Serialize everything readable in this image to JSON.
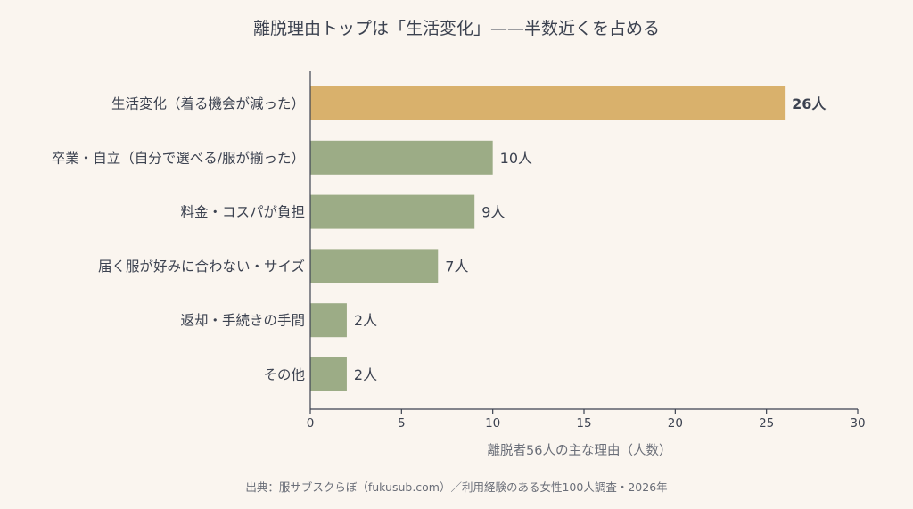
{
  "chart_data": {
    "type": "bar",
    "orientation": "horizontal",
    "title": "離脱理由トップは「生活変化」——半数近くを占める",
    "categories": [
      "生活変化（着る機会が減った）",
      "卒業・自立（自分で選べる/服が揃った）",
      "料金・コスパが負担",
      "届く服が好みに合わない・サイズ",
      "返却・手続きの手間",
      "その他"
    ],
    "values": [
      26,
      10,
      9,
      7,
      2,
      2
    ],
    "value_labels": [
      "26人",
      "10人",
      "9人",
      "7人",
      "2人",
      "2人"
    ],
    "highlight_index": 0,
    "xlabel": "離脱者56人の主な理由（人数）",
    "ylabel": "",
    "xlim": [
      0,
      30
    ],
    "xticks": [
      0,
      5,
      10,
      15,
      20,
      25,
      30
    ],
    "grid": false,
    "legend": "none"
  },
  "source": "出典：服サブスクらぼ（fukusub.com）／利用経験のある女性100人調査・2026年",
  "colors": {
    "highlight_bar": "#d9b16c",
    "bar": "#9cac86",
    "axis": "#3c4250",
    "text": "#3c4250",
    "muted_text": "#6a6e78",
    "background": "#faf5ef"
  }
}
